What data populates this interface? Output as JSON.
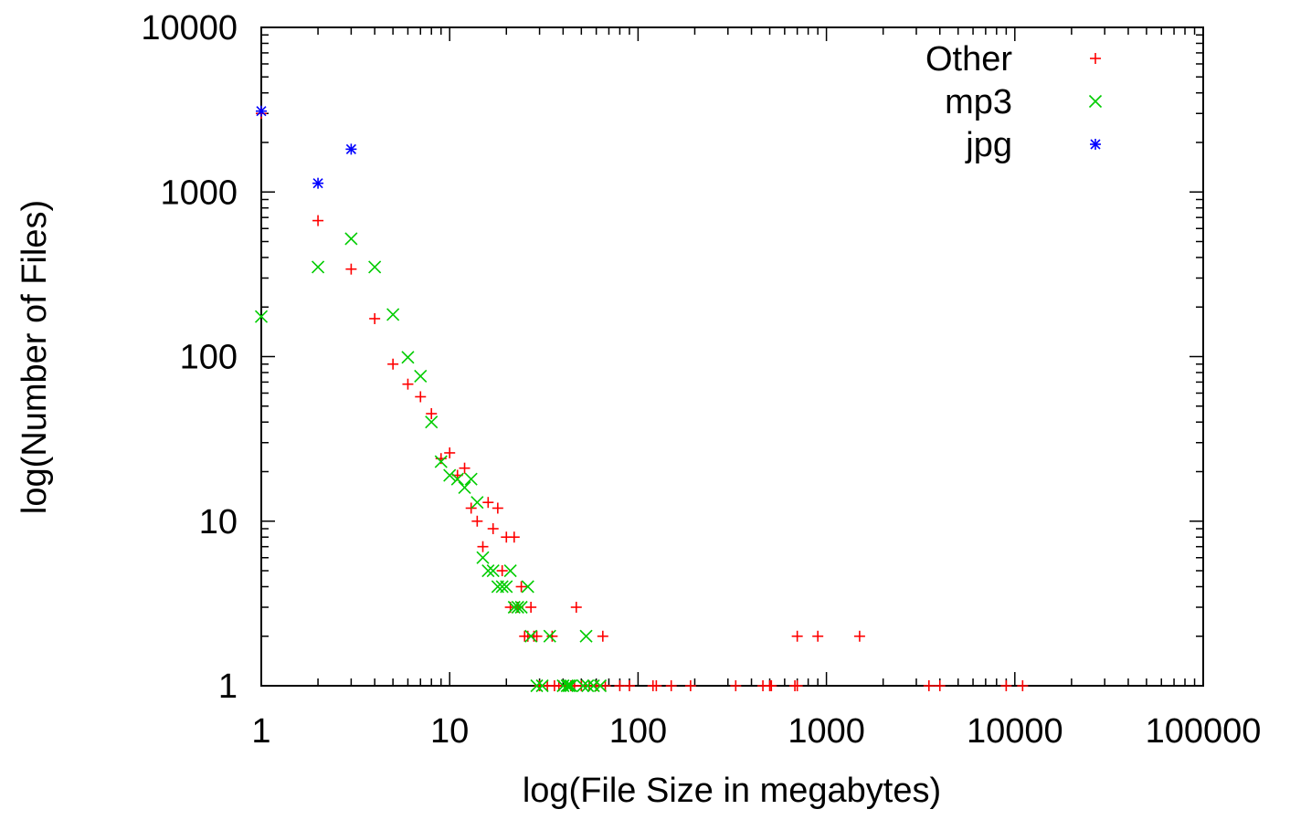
{
  "chart_data": {
    "type": "scatter",
    "title": "",
    "xlabel": "log(File Size in megabytes)",
    "ylabel": "log(Number of Files)",
    "x_scale": "log",
    "y_scale": "log",
    "xlim": [
      1,
      100000
    ],
    "ylim": [
      1,
      10000
    ],
    "x_ticks": [
      1,
      10,
      100,
      1000,
      10000,
      100000
    ],
    "x_tick_labels": [
      "1",
      "10",
      "100",
      "1000",
      "10000",
      "100000"
    ],
    "y_ticks": [
      1,
      10,
      100,
      1000,
      10000
    ],
    "y_tick_labels": [
      "1",
      "10",
      "100",
      "1000",
      "10000"
    ],
    "grid": false,
    "legend_position": "top-right",
    "series": [
      {
        "name": "Other",
        "color": "#ff0000",
        "marker": "plus",
        "points": [
          [
            1,
            3000
          ],
          [
            2,
            670
          ],
          [
            3,
            340
          ],
          [
            4,
            170
          ],
          [
            5,
            90
          ],
          [
            6,
            68
          ],
          [
            7,
            57
          ],
          [
            8,
            45
          ],
          [
            9,
            24
          ],
          [
            10,
            26
          ],
          [
            11,
            19
          ],
          [
            12,
            21
          ],
          [
            13,
            12
          ],
          [
            14,
            10
          ],
          [
            15,
            7
          ],
          [
            16,
            13
          ],
          [
            17,
            9
          ],
          [
            18,
            12
          ],
          [
            19,
            5
          ],
          [
            20,
            8
          ],
          [
            21,
            3
          ],
          [
            22,
            8
          ],
          [
            23,
            3
          ],
          [
            24,
            4
          ],
          [
            25,
            2
          ],
          [
            26,
            2
          ],
          [
            27,
            3
          ],
          [
            28,
            2
          ],
          [
            29,
            2
          ],
          [
            35,
            2
          ],
          [
            47,
            3
          ],
          [
            65,
            2
          ],
          [
            700,
            2
          ],
          [
            900,
            2
          ],
          [
            1500,
            2
          ],
          [
            30,
            1
          ],
          [
            33,
            1
          ],
          [
            36,
            1
          ],
          [
            38,
            1
          ],
          [
            41,
            1
          ],
          [
            44,
            1
          ],
          [
            46,
            1
          ],
          [
            50,
            1
          ],
          [
            55,
            1
          ],
          [
            60,
            1
          ],
          [
            67,
            1
          ],
          [
            80,
            1
          ],
          [
            90,
            1
          ],
          [
            120,
            1
          ],
          [
            125,
            1
          ],
          [
            150,
            1
          ],
          [
            190,
            1
          ],
          [
            330,
            1
          ],
          [
            460,
            1
          ],
          [
            500,
            1
          ],
          [
            510,
            1
          ],
          [
            680,
            1
          ],
          [
            700,
            1
          ],
          [
            3500,
            1
          ],
          [
            4000,
            1
          ],
          [
            9000,
            1
          ],
          [
            11000,
            1
          ]
        ]
      },
      {
        "name": "mp3",
        "color": "#00cc00",
        "marker": "cross",
        "points": [
          [
            1,
            175
          ],
          [
            2,
            350
          ],
          [
            3,
            520
          ],
          [
            4,
            350
          ],
          [
            5,
            180
          ],
          [
            6,
            99
          ],
          [
            7,
            76
          ],
          [
            8,
            40
          ],
          [
            9,
            23
          ],
          [
            10,
            19
          ],
          [
            11,
            18
          ],
          [
            12,
            16
          ],
          [
            13,
            18
          ],
          [
            14,
            13
          ],
          [
            15,
            6
          ],
          [
            16,
            5
          ],
          [
            17,
            5
          ],
          [
            18,
            4
          ],
          [
            19,
            4
          ],
          [
            20,
            4
          ],
          [
            21,
            5
          ],
          [
            22,
            3
          ],
          [
            23,
            3
          ],
          [
            24,
            3
          ],
          [
            26,
            4
          ],
          [
            27,
            2
          ],
          [
            34,
            2
          ],
          [
            53,
            2
          ],
          [
            29,
            1
          ],
          [
            31,
            1
          ],
          [
            40,
            1
          ],
          [
            42,
            1
          ],
          [
            43,
            1
          ],
          [
            44,
            1
          ],
          [
            51,
            1
          ],
          [
            54,
            1
          ],
          [
            58,
            1
          ],
          [
            63,
            1
          ]
        ]
      },
      {
        "name": "jpg",
        "color": "#0000ff",
        "marker": "star",
        "points": [
          [
            1,
            3100
          ],
          [
            2,
            1130
          ],
          [
            3,
            1820
          ]
        ]
      }
    ]
  }
}
